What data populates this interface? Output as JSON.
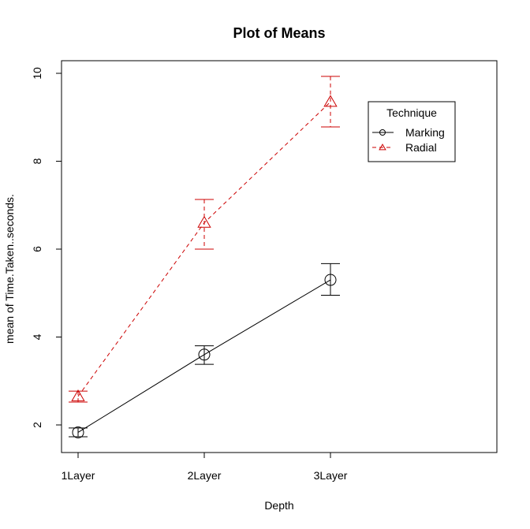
{
  "chart_data": {
    "type": "line",
    "title": "Plot of Means",
    "xlabel": "Depth",
    "ylabel": "mean of Time.Taken..seconds.",
    "categories": [
      "1Layer",
      "2Layer",
      "3Layer"
    ],
    "ylim": [
      1.4,
      10.3
    ],
    "yticks": [
      2,
      4,
      6,
      8,
      10
    ],
    "grid": false,
    "legend": {
      "title": "Technique",
      "position": "top-right"
    },
    "series": [
      {
        "name": "Marking",
        "color": "#000000",
        "line_style": "solid",
        "marker": "circle",
        "values": [
          1.83,
          3.6,
          5.3
        ],
        "error_low": [
          1.73,
          3.38,
          4.95
        ],
        "error_high": [
          1.93,
          3.8,
          5.67
        ]
      },
      {
        "name": "Radial",
        "color": "#cc0000",
        "line_style": "dashed",
        "marker": "triangle",
        "values": [
          2.65,
          6.6,
          9.35
        ],
        "error_low": [
          2.52,
          6.0,
          8.78
        ],
        "error_high": [
          2.77,
          7.13,
          9.93
        ]
      }
    ]
  }
}
